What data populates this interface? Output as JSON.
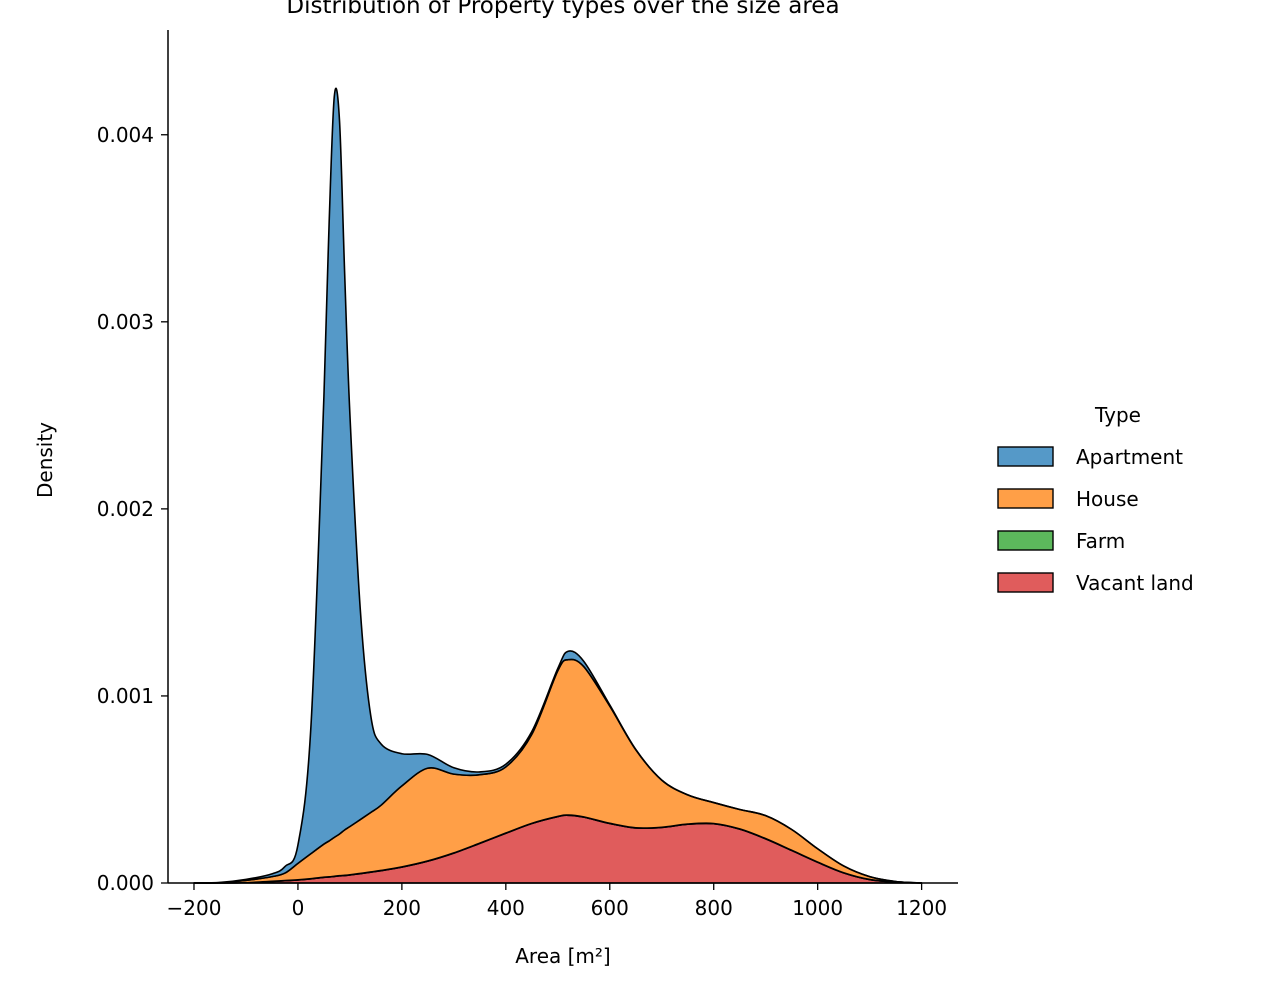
{
  "chart_data": {
    "type": "area",
    "stacking": "stacked",
    "title": "Distribution of Property types over the size area",
    "xlabel": "Area [m²]",
    "ylabel": "Density",
    "xlim": [
      -250,
      1270
    ],
    "ylim": [
      0,
      0.00456
    ],
    "xticks": [
      -200,
      0,
      200,
      400,
      600,
      800,
      1000,
      1200
    ],
    "xtick_labels": [
      "−200",
      "0",
      "200",
      "400",
      "600",
      "800",
      "1000",
      "1200"
    ],
    "yticks": [
      0,
      0.001,
      0.002,
      0.003,
      0.004
    ],
    "ytick_labels": [
      "0.000",
      "0.001",
      "0.002",
      "0.003",
      "0.004"
    ],
    "grid": false,
    "legend": {
      "title": "Type",
      "placement": "outside-right",
      "entries": [
        "Apartment",
        "House",
        "Farm",
        "Vacant land"
      ]
    },
    "x": [
      -200,
      -150,
      -100,
      -50,
      -25,
      0,
      25,
      50,
      60,
      70,
      80,
      90,
      100,
      120,
      140,
      160,
      200,
      250,
      300,
      350,
      400,
      450,
      500,
      520,
      550,
      600,
      650,
      700,
      750,
      800,
      850,
      900,
      950,
      1000,
      1050,
      1100,
      1150,
      1200
    ],
    "series": [
      {
        "name": "Vacant land",
        "color": "#e05c5c",
        "values": [
          0,
          0,
          2e-06,
          8e-06,
          1.2e-05,
          1.6e-05,
          2.2e-05,
          3e-05,
          3.2e-05,
          3.5e-05,
          3.8e-05,
          4e-05,
          4.3e-05,
          5e-05,
          5.8e-05,
          6.6e-05,
          8.5e-05,
          0.000117,
          0.00016,
          0.000212,
          0.000266,
          0.000318,
          0.000355,
          0.000362,
          0.000352,
          0.000318,
          0.000294,
          0.000297,
          0.000314,
          0.000317,
          0.000288,
          0.000236,
          0.000174,
          0.000111,
          5.4e-05,
          1.8e-05,
          5e-06,
          0
        ]
      },
      {
        "name": "Farm",
        "color": "#5cb85c",
        "values": [
          0,
          0,
          0,
          1e-06,
          1e-06,
          1e-06,
          1e-06,
          1e-06,
          1e-06,
          1e-06,
          1e-06,
          1e-06,
          1e-06,
          1e-06,
          1e-06,
          1e-06,
          1e-06,
          1e-06,
          1e-06,
          1e-06,
          1e-06,
          1e-06,
          1e-06,
          1e-06,
          1e-06,
          1e-06,
          1e-06,
          1e-06,
          1e-06,
          1e-06,
          1e-06,
          1e-06,
          1e-06,
          1e-06,
          1e-06,
          1e-06,
          0,
          0
        ]
      },
      {
        "name": "House",
        "color": "#ff9f47",
        "values": [
          0,
          2e-06,
          1.2e-05,
          2.5e-05,
          4e-05,
          8.8e-05,
          0.000134,
          0.000177,
          0.000192,
          0.000208,
          0.000223,
          0.000243,
          0.000258,
          0.000288,
          0.000318,
          0.000349,
          0.000433,
          0.000496,
          0.000421,
          0.000366,
          0.000354,
          0.000476,
          0.000779,
          0.000831,
          0.000804,
          0.000627,
          0.000418,
          0.000252,
          0.000156,
          0.000112,
          0.000104,
          0.000123,
          0.000111,
          7.1e-05,
          3.6e-05,
          1.5e-05,
          3e-06,
          0
        ]
      },
      {
        "name": "Apartment",
        "color": "#5599c8",
        "values": [
          0,
          1e-06,
          5e-06,
          1.5e-05,
          3.5e-05,
          9.8e-05,
          0.00068,
          0.002394,
          0.003302,
          0.003962,
          0.003813,
          0.002967,
          0.002202,
          0.001122,
          0.000519,
          0.000327,
          0.000172,
          7.3e-05,
          3.4e-05,
          1.5e-05,
          1.4e-05,
          1.5e-05,
          1.2e-05,
          4.5e-05,
          2.8e-05,
          6e-06,
          1e-06,
          0,
          0,
          0,
          0,
          0,
          0,
          0,
          0,
          0,
          0,
          0
        ]
      }
    ]
  }
}
